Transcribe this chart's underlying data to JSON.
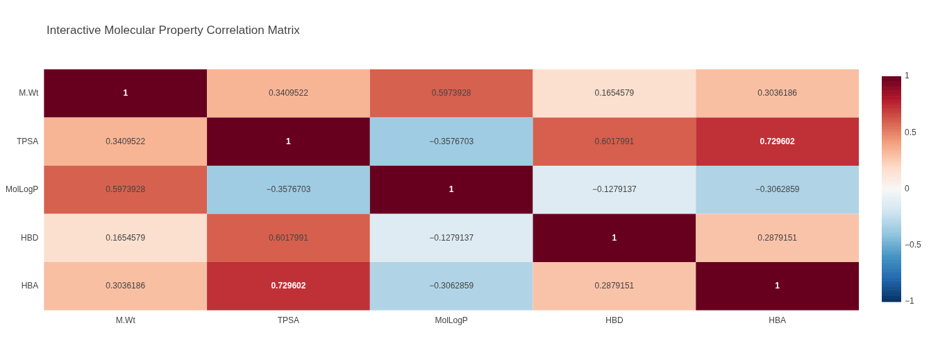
{
  "chart_data": {
    "type": "heatmap",
    "title": "Interactive Molecular Property Correlation Matrix",
    "categories": [
      "M.Wt",
      "TPSA",
      "MolLogP",
      "HBD",
      "HBA"
    ],
    "y_categories": [
      "M.Wt",
      "TPSA",
      "MolLogP",
      "HBD",
      "HBA"
    ],
    "cells": [
      [
        1,
        0.3409522,
        0.5973928,
        0.1654579,
        0.3036186
      ],
      [
        0.3409522,
        1,
        -0.3576703,
        0.6017991,
        0.729602
      ],
      [
        0.5973928,
        -0.3576703,
        1,
        -0.1279137,
        -0.3062859
      ],
      [
        0.1654579,
        0.6017991,
        -0.1279137,
        1,
        0.2879151
      ],
      [
        0.3036186,
        0.729602,
        -0.3062859,
        0.2879151,
        1
      ]
    ],
    "cell_labels": [
      [
        "1",
        "0.3409522",
        "0.5973928",
        "0.1654579",
        "0.3036186"
      ],
      [
        "0.3409522",
        "1",
        "−0.3576703",
        "0.6017991",
        "0.729602"
      ],
      [
        "0.5973928",
        "−0.3576703",
        "1",
        "−0.1279137",
        "−0.3062859"
      ],
      [
        "0.1654579",
        "0.6017991",
        "−0.1279137",
        "1",
        "0.2879151"
      ],
      [
        "0.3036186",
        "0.729602",
        "−0.3062859",
        "0.2879151",
        "1"
      ]
    ],
    "clim": [
      -1,
      1
    ],
    "cticks": [
      {
        "value": -1,
        "label": "−1"
      },
      {
        "value": -0.5,
        "label": "−0.5"
      },
      0,
      0.5,
      1
    ]
  }
}
